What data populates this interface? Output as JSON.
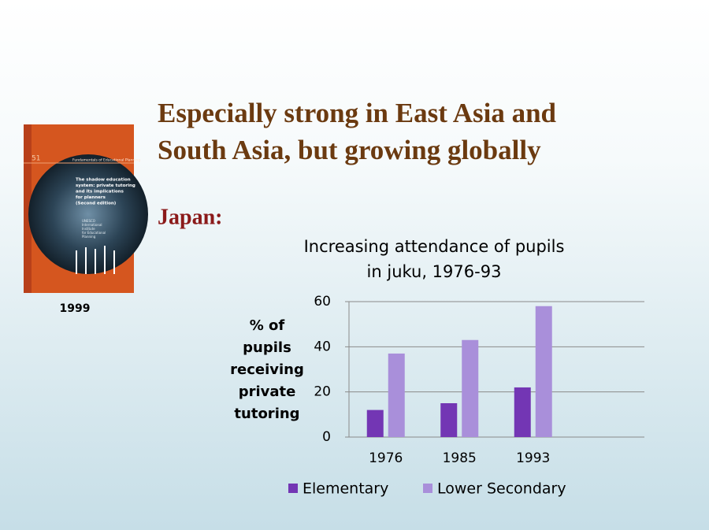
{
  "slide": {
    "heading": [
      "Especially strong in East Asia and",
      "South Asia, but growing globally"
    ],
    "subheading": "Japan:",
    "cover_year": "1999",
    "cover": {
      "number": "51",
      "series": "Fundamentals of Educational Planning",
      "title": [
        "The shadow education",
        "system: private tutoring",
        "and its implications",
        "for planners",
        "(Second edition)"
      ],
      "publisher": [
        "UNESCO",
        "International",
        "Institute",
        "for Educational",
        "Planning"
      ]
    }
  },
  "chart_data": {
    "type": "bar",
    "title": [
      "Increasing attendance of pupils",
      "in juku, 1976-93"
    ],
    "ylabel": [
      "% of",
      "pupils",
      "receiving",
      "private",
      "tutoring"
    ],
    "categories": [
      "1976",
      "1985",
      "1993"
    ],
    "series": [
      {
        "name": "Elementary",
        "color": "#7336b4",
        "values": [
          12,
          15,
          22
        ]
      },
      {
        "name": "Lower Secondary",
        "color": "#a98fda",
        "values": [
          37,
          43,
          58
        ]
      }
    ],
    "ylim": [
      0,
      60
    ],
    "yticks": [
      0,
      20,
      40,
      60
    ],
    "grid": true,
    "legend": "bottom"
  }
}
